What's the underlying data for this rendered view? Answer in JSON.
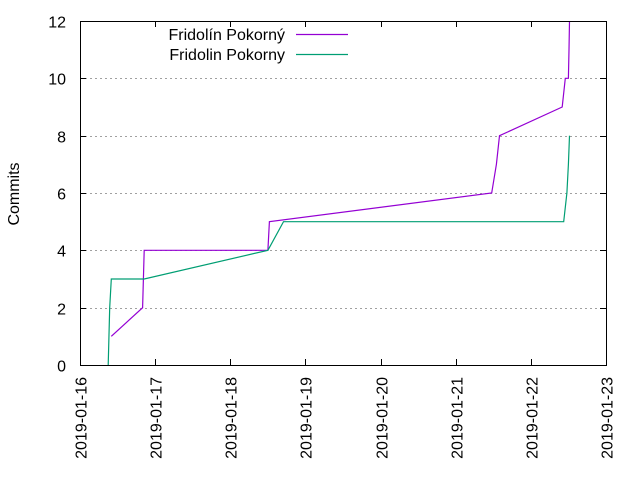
{
  "chart_data": {
    "type": "line",
    "ylabel": "Commits",
    "xlabel": "",
    "ylim": [
      0,
      12
    ],
    "yticks": [
      "0",
      "2",
      "4",
      "6",
      "8",
      "10",
      "12"
    ],
    "xlim": [
      "2019-01-16",
      "2019-01-23"
    ],
    "xticks": [
      "2019-01-16",
      "2019-01-17",
      "2019-01-18",
      "2019-01-19",
      "2019-01-20",
      "2019-01-21",
      "2019-01-22",
      "2019-01-23"
    ],
    "grid": "horizontal",
    "legend_position": "top-left",
    "series": [
      {
        "name": "Fridolín Pokorný",
        "color": "#9400d3",
        "points": [
          [
            "2019-01-16 10:00",
            1
          ],
          [
            "2019-01-16 20:00",
            2
          ],
          [
            "2019-01-16 20:30",
            4
          ],
          [
            "2019-01-18 12:00",
            4
          ],
          [
            "2019-01-18 12:30",
            5
          ],
          [
            "2019-01-21 11:30",
            6
          ],
          [
            "2019-01-21 13:00",
            7
          ],
          [
            "2019-01-21 14:00",
            8
          ],
          [
            "2019-01-22 10:00",
            9
          ],
          [
            "2019-01-22 11:00",
            10
          ],
          [
            "2019-01-22 12:00",
            10
          ],
          [
            "2019-01-22 12:10",
            11
          ],
          [
            "2019-01-22 12:20",
            12
          ]
        ]
      },
      {
        "name": "Fridolin Pokorny",
        "color": "#009e73",
        "points": [
          [
            "2019-01-16 09:00",
            0
          ],
          [
            "2019-01-16 09:30",
            2
          ],
          [
            "2019-01-16 10:00",
            3
          ],
          [
            "2019-01-16 20:30",
            3
          ],
          [
            "2019-01-18 12:00",
            4
          ],
          [
            "2019-01-18 17:00",
            5
          ],
          [
            "2019-01-22 10:30",
            5
          ],
          [
            "2019-01-22 11:30",
            6
          ],
          [
            "2019-01-22 12:00",
            7
          ],
          [
            "2019-01-22 12:20",
            8
          ]
        ]
      }
    ]
  }
}
